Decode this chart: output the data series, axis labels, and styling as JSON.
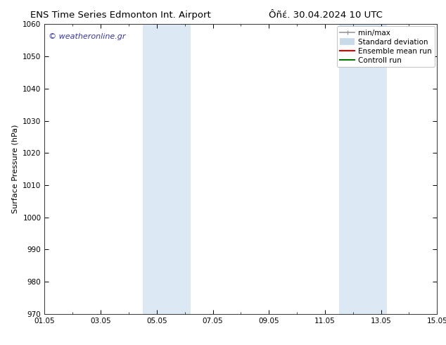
{
  "title_left": "ENS Time Series Edmonton Int. Airport",
  "title_right": "Ôñέ. 30.04.2024 10 UTC",
  "ylabel": "Surface Pressure (hPa)",
  "ylim": [
    970,
    1060
  ],
  "yticks": [
    970,
    980,
    990,
    1000,
    1010,
    1020,
    1030,
    1040,
    1050,
    1060
  ],
  "x_start_days": 0,
  "x_end_days": 14,
  "xtick_labels": [
    "01.05",
    "03.05",
    "05.05",
    "07.05",
    "09.05",
    "11.05",
    "13.05",
    "15.05"
  ],
  "xtick_positions_days": [
    0,
    2,
    4,
    6,
    8,
    10,
    12,
    14
  ],
  "shaded_regions": [
    {
      "start_day": 3.5,
      "end_day": 5.2,
      "color": "#dce9f5"
    },
    {
      "start_day": 10.5,
      "end_day": 12.2,
      "color": "#dce9f5"
    }
  ],
  "watermark_text": "© weatheronline.gr",
  "watermark_color": "#3333bb",
  "legend_entries": [
    {
      "label": "min/max",
      "color": "#999999",
      "lw": 1.2
    },
    {
      "label": "Standard deviation",
      "color": "#c8daea",
      "lw": 7
    },
    {
      "label": "Ensemble mean run",
      "color": "#dd0000",
      "lw": 1.5
    },
    {
      "label": "Controll run",
      "color": "#007700",
      "lw": 1.5
    }
  ],
  "bg_color": "#ffffff",
  "plot_bg_color": "#ffffff",
  "title_fontsize": 9.5,
  "label_fontsize": 8,
  "tick_fontsize": 7.5,
  "legend_fontsize": 7.5
}
